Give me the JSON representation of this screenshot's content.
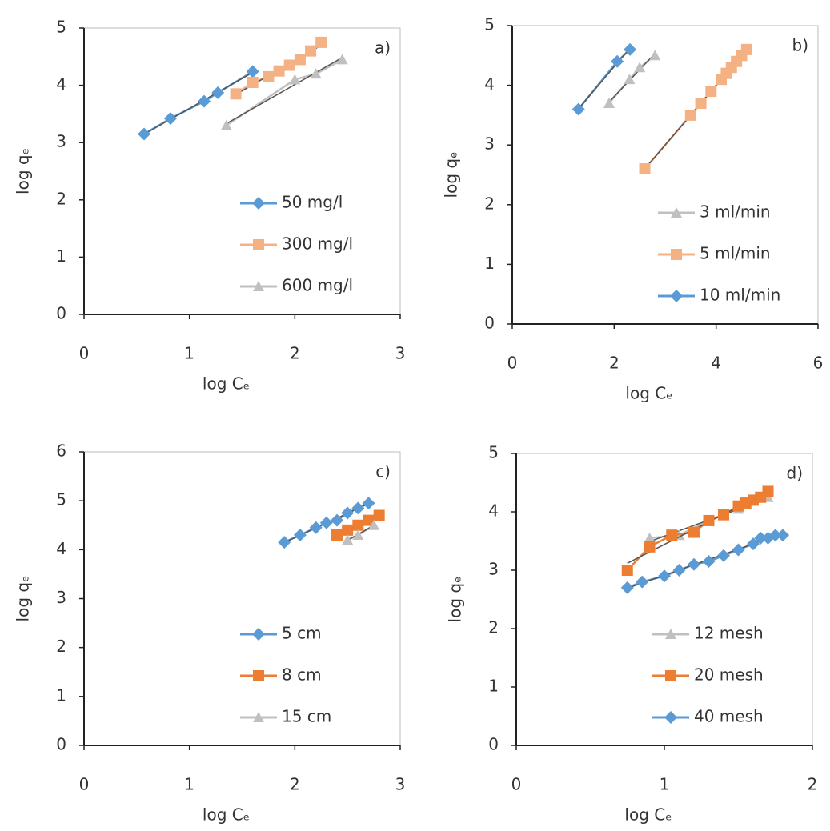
{
  "chart_data": [
    {
      "type": "line",
      "label": "a)",
      "x_label": "log Cₑ",
      "y_label": "log qₑ",
      "xlim": [
        0,
        3
      ],
      "xticks": [
        0,
        1,
        2,
        3
      ],
      "ylim": [
        0,
        5
      ],
      "yticks": [
        0,
        1,
        2,
        3,
        4,
        5
      ],
      "legend": "lower right",
      "series": [
        {
          "name": "50 mg/l",
          "color": "#5b9bd5",
          "marker": "diamond",
          "x": [
            0.57,
            0.82,
            1.14,
            1.27,
            1.6
          ],
          "values": [
            3.15,
            3.42,
            3.72,
            3.87,
            4.24
          ]
        },
        {
          "name": "300 mg/l",
          "color": "#f4b183",
          "marker": "square",
          "x": [
            1.44,
            1.6,
            1.75,
            1.85,
            1.95,
            2.05,
            2.15,
            2.25
          ],
          "values": [
            3.85,
            4.05,
            4.15,
            4.25,
            4.35,
            4.45,
            4.6,
            4.75
          ]
        },
        {
          "name": "600 mg/l",
          "color": "#c0c0c0",
          "marker": "triangle",
          "x": [
            1.35,
            2.0,
            2.2,
            2.45
          ],
          "values": [
            3.3,
            4.1,
            4.2,
            4.45
          ]
        }
      ]
    },
    {
      "type": "line",
      "label": "b)",
      "x_label": "log Cₑ",
      "y_label": "log qₑ",
      "xlim": [
        0,
        6
      ],
      "xticks": [
        0,
        2,
        4,
        6
      ],
      "ylim": [
        0,
        5
      ],
      "yticks": [
        0,
        1,
        2,
        3,
        4,
        5
      ],
      "legend": "lower right",
      "series": [
        {
          "name": "3 ml/min",
          "color": "#c0c0c0",
          "marker": "triangle",
          "x": [
            1.9,
            2.3,
            2.5,
            2.8
          ],
          "values": [
            3.7,
            4.1,
            4.3,
            4.5
          ]
        },
        {
          "name": "5 ml/min",
          "color": "#f4b183",
          "marker": "square",
          "x": [
            2.6,
            3.5,
            3.7,
            3.9,
            4.1,
            4.2,
            4.3,
            4.4,
            4.5,
            4.6
          ],
          "values": [
            2.6,
            3.5,
            3.7,
            3.9,
            4.1,
            4.2,
            4.3,
            4.4,
            4.5,
            4.6
          ]
        },
        {
          "name": "10 ml/min",
          "color": "#5b9bd5",
          "marker": "diamond",
          "x": [
            1.3,
            2.06,
            2.31
          ],
          "values": [
            3.6,
            4.4,
            4.6
          ]
        }
      ]
    },
    {
      "type": "line",
      "label": "c)",
      "x_label": "log Cₑ",
      "y_label": "log qₑ",
      "xlim": [
        0,
        3
      ],
      "xticks": [
        0,
        1,
        2,
        3
      ],
      "ylim": [
        0,
        6
      ],
      "yticks": [
        0,
        1,
        2,
        3,
        4,
        5,
        6
      ],
      "legend": "lower right",
      "series": [
        {
          "name": "5 cm",
          "color": "#5b9bd5",
          "marker": "diamond",
          "x": [
            1.9,
            2.05,
            2.2,
            2.3,
            2.4,
            2.5,
            2.6,
            2.7
          ],
          "values": [
            4.15,
            4.3,
            4.45,
            4.55,
            4.6,
            4.75,
            4.85,
            4.95
          ]
        },
        {
          "name": "8 cm",
          "color": "#ed7d31",
          "marker": "square",
          "x": [
            2.4,
            2.5,
            2.6,
            2.7,
            2.8
          ],
          "values": [
            4.3,
            4.4,
            4.5,
            4.6,
            4.7
          ]
        },
        {
          "name": "15 cm",
          "color": "#c0c0c0",
          "marker": "triangle",
          "x": [
            2.5,
            2.6,
            2.75
          ],
          "values": [
            4.2,
            4.3,
            4.5
          ]
        }
      ]
    },
    {
      "type": "line",
      "label": "d)",
      "x_label": "log Cₑ",
      "y_label": "log qₑ",
      "xlim": [
        0,
        2
      ],
      "xticks": [
        0,
        1,
        2
      ],
      "ylim": [
        0,
        5
      ],
      "yticks": [
        0,
        1,
        2,
        3,
        4,
        5
      ],
      "legend": "lower right",
      "series": [
        {
          "name": "12 mesh",
          "color": "#c0c0c0",
          "marker": "triangle",
          "x": [
            0.9,
            1.1,
            1.3,
            1.5,
            1.7
          ],
          "values": [
            3.55,
            3.6,
            3.85,
            4.05,
            4.25
          ]
        },
        {
          "name": "20 mesh",
          "color": "#ed7d31",
          "marker": "square",
          "x": [
            0.75,
            0.9,
            1.05,
            1.2,
            1.3,
            1.4,
            1.5,
            1.55,
            1.6,
            1.65,
            1.7
          ],
          "values": [
            3.0,
            3.4,
            3.6,
            3.65,
            3.85,
            3.95,
            4.1,
            4.15,
            4.2,
            4.25,
            4.35
          ]
        },
        {
          "name": "40 mesh",
          "color": "#5b9bd5",
          "marker": "diamond",
          "x": [
            0.75,
            0.85,
            1.0,
            1.1,
            1.2,
            1.3,
            1.4,
            1.5,
            1.6,
            1.65,
            1.7,
            1.75,
            1.8
          ],
          "values": [
            2.7,
            2.8,
            2.9,
            3.0,
            3.1,
            3.15,
            3.25,
            3.35,
            3.45,
            3.55,
            3.55,
            3.6,
            3.6
          ]
        }
      ]
    }
  ]
}
